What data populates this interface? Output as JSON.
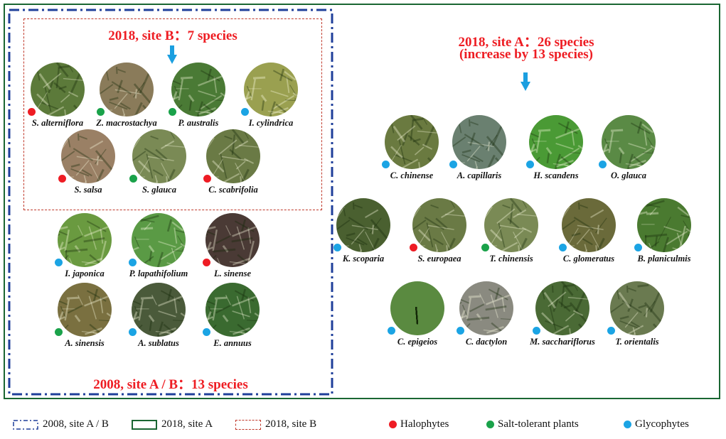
{
  "colors": {
    "halophyte": "#ee1c24",
    "salt_tolerant": "#1aa24a",
    "glycophyte": "#1ba4e4",
    "box_2008": "#1f3f9a",
    "box_2018_a": "#1a6632",
    "box_2018_b": "#c0392b",
    "title_red": "#ee1d23",
    "arrow_blue": "#1b9fe0"
  },
  "titles": {
    "site_b_2018": "2018,  site B：7 species",
    "site_a_2018_line1": "2018, site A：26 species",
    "site_a_2018_line2": "(increase by 13 species)",
    "site_ab_2008": "2008, site A / B：13 species"
  },
  "species": {
    "site_b": [
      {
        "name": "S. alterniflora",
        "type": "halophyte",
        "tone": "#5c7a3a"
      },
      {
        "name": "Z. macrostachya",
        "type": "salt_tolerant",
        "tone": "#8a7b5a"
      },
      {
        "name": "P. australis",
        "type": "salt_tolerant",
        "tone": "#4a7a35"
      },
      {
        "name": "I. cylindrica",
        "type": "glycophyte",
        "tone": "#9aa050"
      },
      {
        "name": "S. salsa",
        "type": "halophyte",
        "tone": "#9a8065"
      },
      {
        "name": "S. glauca",
        "type": "salt_tolerant",
        "tone": "#7a8a55"
      },
      {
        "name": "C. scabrifolia",
        "type": "halophyte",
        "tone": "#6a7a45"
      }
    ],
    "site_ab_2008": [
      {
        "name": "I. japonica",
        "type": "glycophyte",
        "tone": "#6a9a40"
      },
      {
        "name": "P. lapathifolium",
        "type": "glycophyte",
        "tone": "#5a9a45"
      },
      {
        "name": "L. sinense",
        "type": "halophyte",
        "tone": "#4a3a35"
      },
      {
        "name": "A. sinensis",
        "type": "salt_tolerant",
        "tone": "#7a7040"
      },
      {
        "name": "A. sublatus",
        "type": "glycophyte",
        "tone": "#4a5a3a"
      },
      {
        "name": "E. annuus",
        "type": "glycophyte",
        "tone": "#3a6a30"
      }
    ],
    "site_a": [
      {
        "name": "C. chinense",
        "type": "glycophyte",
        "tone": "#6a7a40"
      },
      {
        "name": "A. capillaris",
        "type": "glycophyte",
        "tone": "#6a8070"
      },
      {
        "name": "H. scandens",
        "type": "glycophyte",
        "tone": "#4a9a35"
      },
      {
        "name": "O. glauca",
        "type": "glycophyte",
        "tone": "#5a8a45"
      },
      {
        "name": "K. scoparia",
        "type": "glycophyte",
        "tone": "#4a6030"
      },
      {
        "name": "S. europaea",
        "type": "halophyte",
        "tone": "#6a7a45"
      },
      {
        "name": "T. chinensis",
        "type": "salt_tolerant",
        "tone": "#7a8a55"
      },
      {
        "name": "C. glomeratus",
        "type": "glycophyte",
        "tone": "#6a6a3a"
      },
      {
        "name": "B. planiculmis",
        "type": "glycophyte",
        "tone": "#4a7a30"
      },
      {
        "name": "C. epigeios",
        "type": "glycophyte",
        "tone": "#5a8a40"
      },
      {
        "name": "C. dactylon",
        "type": "glycophyte",
        "tone": "#8a8a80"
      },
      {
        "name": "M. sacchariflorus",
        "type": "glycophyte",
        "tone": "#4a6a35"
      },
      {
        "name": "T. orientalis",
        "type": "glycophyte",
        "tone": "#6a7a50"
      }
    ]
  },
  "legend": {
    "boxes": [
      {
        "label": "2008, site A / B",
        "style": "dashdot"
      },
      {
        "label": "2018, site A",
        "style": "solid"
      },
      {
        "label": "2018, site B",
        "style": "dashed"
      }
    ],
    "categories": [
      {
        "label": "Halophytes",
        "type": "halophyte"
      },
      {
        "label": "Salt-tolerant plants",
        "type": "salt_tolerant"
      },
      {
        "label": "Glycophytes",
        "type": "glycophyte"
      }
    ]
  }
}
